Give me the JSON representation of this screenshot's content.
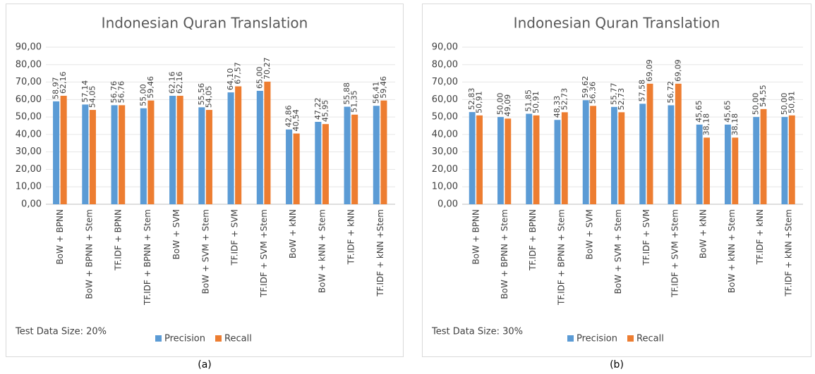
{
  "chart_data": [
    {
      "type": "bar",
      "title": "Indonesian Quran Translation",
      "annotation": "Test Data Size: 20%",
      "caption": "(a)",
      "categories": [
        "BoW + BPNN",
        "BoW + BPNN + Stem",
        "TF.IDF + BPNN",
        "TF.IDF + BPNN + Stem",
        "BoW + SVM",
        "BoW + SVM + Stem",
        "TF.IDF + SVM",
        "TF.IDF + SVM +Stem",
        "BoW + kNN",
        "BoW + kNN + Stem",
        "TF.IDF + kNN",
        "TF.IDF + kNN +Stem"
      ],
      "series": [
        {
          "name": "Precision",
          "color": "#5b9bd5",
          "values": [
            58.97,
            57.14,
            56.76,
            55.0,
            62.16,
            55.56,
            64.1,
            65.0,
            42.86,
            47.22,
            55.88,
            56.41
          ],
          "value_labels": [
            "58,97",
            "57,14",
            "56,76",
            "55,00",
            "62,16",
            "55,56",
            "64,10",
            "65,00",
            "42,86",
            "47,22",
            "55,88",
            "56,41"
          ]
        },
        {
          "name": "Recall",
          "color": "#ed7d31",
          "values": [
            62.16,
            54.05,
            56.76,
            59.46,
            62.16,
            54.05,
            67.57,
            70.27,
            40.54,
            45.95,
            51.35,
            59.46
          ],
          "value_labels": [
            "62,16",
            "54,05",
            "56,76",
            "59,46",
            "62,16",
            "54,05",
            "67,57",
            "70,27",
            "40,54",
            "45,95",
            "51,35",
            "59,46"
          ]
        }
      ],
      "ylim": [
        0,
        90
      ],
      "yticks": [
        {
          "value": 0,
          "label": "0,00"
        },
        {
          "value": 10,
          "label": "10,00"
        },
        {
          "value": 20,
          "label": "20,00"
        },
        {
          "value": 30,
          "label": "30,00"
        },
        {
          "value": 40,
          "label": "40,00"
        },
        {
          "value": 50,
          "label": "50,00"
        },
        {
          "value": 60,
          "label": "60,00"
        },
        {
          "value": 70,
          "label": "70,00"
        },
        {
          "value": 80,
          "label": "80,00"
        },
        {
          "value": 90,
          "label": "90,00"
        }
      ],
      "legend": "bottom"
    },
    {
      "type": "bar",
      "title": "Indonesian Quran Translation",
      "annotation": "Test Data Size: 30%",
      "caption": "(b)",
      "categories": [
        "BoW + BPNN",
        "BoW + BPNN + Stem",
        "TF.IDF + BPNN",
        "TF.IDF + BPNN + Stem",
        "BoW + SVM",
        "BoW + SVM + Stem",
        "TF.IDF + SVM",
        "TF.IDF + SVM +Stem",
        "BoW + kNN",
        "BoW + kNN + Stem",
        "TF.IDF + kNN",
        "TF.IDF + kNN +Stem"
      ],
      "series": [
        {
          "name": "Precision",
          "color": "#5b9bd5",
          "values": [
            52.83,
            50.0,
            51.85,
            48.33,
            59.62,
            55.77,
            57.58,
            56.72,
            45.65,
            45.65,
            50.0,
            50.0
          ],
          "value_labels": [
            "52,83",
            "50,00",
            "51,85",
            "48,33",
            "59,62",
            "55,77",
            "57,58",
            "56,72",
            "45,65",
            "45,65",
            "50,00",
            "50,00"
          ]
        },
        {
          "name": "Recall",
          "color": "#ed7d31",
          "values": [
            50.91,
            49.09,
            50.91,
            52.73,
            56.36,
            52.73,
            69.09,
            69.09,
            38.18,
            38.18,
            54.55,
            50.91
          ],
          "value_labels": [
            "50,91",
            "49,09",
            "50,91",
            "52,73",
            "56,36",
            "52,73",
            "69,09",
            "69,09",
            "38,18",
            "38,18",
            "54,55",
            "50,91"
          ]
        }
      ],
      "ylim": [
        0,
        90
      ],
      "yticks": [
        {
          "value": 0,
          "label": "0,00"
        },
        {
          "value": 10,
          "label": "10,00"
        },
        {
          "value": 20,
          "label": "20,00"
        },
        {
          "value": 30,
          "label": "30,00"
        },
        {
          "value": 40,
          "label": "40,00"
        },
        {
          "value": 50,
          "label": "50,00"
        },
        {
          "value": 60,
          "label": "60,00"
        },
        {
          "value": 70,
          "label": "70,00"
        },
        {
          "value": 80,
          "label": "80,00"
        },
        {
          "value": 90,
          "label": "90,00"
        }
      ],
      "legend": "bottom"
    }
  ]
}
